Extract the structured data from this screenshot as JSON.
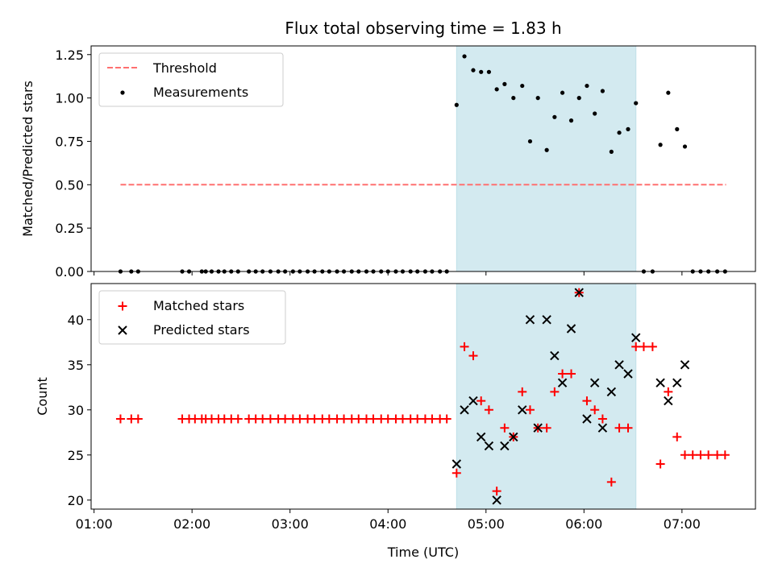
{
  "chart_data": [
    {
      "type": "scatter",
      "title": "Flux total observing time = 1.83 h",
      "xlabel": "",
      "ylabel": "Matched/Predicted stars",
      "ylim": [
        0,
        1.3
      ],
      "yticks": [
        "0.00",
        "0.25",
        "0.50",
        "0.75",
        "1.00",
        "1.25"
      ],
      "x_unit": "hours UTC",
      "xlim": [
        0.97,
        7.75
      ],
      "shaded_interval": [
        4.7,
        6.53
      ],
      "shade_color": "#d3eaf0",
      "legend": {
        "location": "upper left",
        "entries": [
          "Threshold",
          "Measurements"
        ]
      },
      "series": [
        {
          "name": "Threshold",
          "kind": "dashed-line",
          "color": "#ff7070",
          "x": [
            1.27,
            7.45
          ],
          "y": [
            0.5,
            0.5
          ]
        },
        {
          "name": "Measurements",
          "kind": "dot",
          "color": "#000000",
          "x": [
            1.27,
            1.38,
            1.45,
            1.9,
            1.97,
            2.1,
            2.14,
            2.2,
            2.27,
            2.33,
            2.4,
            2.47,
            2.58,
            2.65,
            2.72,
            2.8,
            2.88,
            2.95,
            3.03,
            3.1,
            3.18,
            3.25,
            3.33,
            3.4,
            3.48,
            3.55,
            3.63,
            3.7,
            3.78,
            3.85,
            3.93,
            4.0,
            4.08,
            4.15,
            4.23,
            4.3,
            4.38,
            4.45,
            4.53,
            4.6,
            4.7,
            4.78,
            4.87,
            4.95,
            5.03,
            5.11,
            5.19,
            5.28,
            5.37,
            5.45,
            5.53,
            5.62,
            5.7,
            5.78,
            5.87,
            5.95,
            6.03,
            6.11,
            6.19,
            6.28,
            6.36,
            6.45,
            6.53,
            6.61,
            6.7,
            6.78,
            6.86,
            6.95,
            7.03,
            7.11,
            7.19,
            7.27,
            7.36,
            7.44
          ],
          "y": [
            0,
            0,
            0,
            0,
            0,
            0,
            0,
            0,
            0,
            0,
            0,
            0,
            0,
            0,
            0,
            0,
            0,
            0,
            0,
            0,
            0,
            0,
            0,
            0,
            0,
            0,
            0,
            0,
            0,
            0,
            0,
            0,
            0,
            0,
            0,
            0,
            0,
            0,
            0,
            0,
            0.96,
            1.24,
            1.16,
            1.15,
            1.15,
            1.05,
            1.08,
            1.0,
            1.07,
            0.75,
            1.0,
            0.7,
            0.89,
            1.03,
            0.87,
            1.0,
            1.07,
            0.91,
            1.04,
            0.69,
            0.8,
            0.82,
            0.97,
            0,
            0,
            0.73,
            1.03,
            0.82,
            0.72,
            0,
            0,
            0,
            0,
            0
          ]
        }
      ]
    },
    {
      "type": "scatter",
      "title": "",
      "xlabel": "Time (UTC)",
      "ylabel": "Count",
      "ylim": [
        19,
        44
      ],
      "yticks": [
        "20",
        "25",
        "30",
        "35",
        "40"
      ],
      "xticks": [
        "01:00",
        "02:00",
        "03:00",
        "04:00",
        "05:00",
        "06:00",
        "07:00"
      ],
      "x_unit": "hours UTC",
      "xlim": [
        0.97,
        7.75
      ],
      "shaded_interval": [
        4.7,
        6.53
      ],
      "shade_color": "#d3eaf0",
      "legend": {
        "location": "upper left",
        "entries": [
          "Matched stars",
          "Predicted stars"
        ]
      },
      "series": [
        {
          "name": "Matched stars",
          "kind": "plus",
          "color": "#ff0000",
          "x": [
            1.27,
            1.38,
            1.45,
            1.9,
            1.97,
            2.03,
            2.1,
            2.14,
            2.2,
            2.27,
            2.33,
            2.4,
            2.47,
            2.58,
            2.65,
            2.72,
            2.8,
            2.88,
            2.95,
            3.03,
            3.1,
            3.18,
            3.25,
            3.33,
            3.4,
            3.48,
            3.55,
            3.63,
            3.7,
            3.78,
            3.85,
            3.93,
            4.0,
            4.08,
            4.15,
            4.23,
            4.3,
            4.38,
            4.45,
            4.53,
            4.6,
            4.7,
            4.78,
            4.87,
            4.95,
            5.03,
            5.11,
            5.19,
            5.28,
            5.37,
            5.45,
            5.53,
            5.62,
            5.7,
            5.78,
            5.87,
            5.95,
            6.03,
            6.11,
            6.19,
            6.28,
            6.36,
            6.45,
            6.53,
            6.61,
            6.7,
            6.78,
            6.86,
            6.95,
            7.03,
            7.11,
            7.19,
            7.27,
            7.36,
            7.44
          ],
          "y": [
            29,
            29,
            29,
            29,
            29,
            29,
            29,
            29,
            29,
            29,
            29,
            29,
            29,
            29,
            29,
            29,
            29,
            29,
            29,
            29,
            29,
            29,
            29,
            29,
            29,
            29,
            29,
            29,
            29,
            29,
            29,
            29,
            29,
            29,
            29,
            29,
            29,
            29,
            29,
            29,
            29,
            23,
            37,
            36,
            31,
            30,
            21,
            28,
            27,
            32,
            30,
            28,
            28,
            32,
            34,
            34,
            43,
            31,
            30,
            29,
            22,
            28,
            28,
            37,
            37,
            37,
            24,
            32,
            27,
            25,
            25,
            25,
            25,
            25,
            25
          ]
        },
        {
          "name": "Predicted stars",
          "kind": "cross",
          "color": "#000000",
          "x": [
            4.7,
            4.78,
            4.87,
            4.95,
            5.03,
            5.11,
            5.19,
            5.28,
            5.37,
            5.45,
            5.53,
            5.62,
            5.7,
            5.78,
            5.87,
            5.95,
            6.03,
            6.11,
            6.19,
            6.28,
            6.36,
            6.45,
            6.53,
            6.78,
            6.86,
            6.95,
            7.03
          ],
          "y": [
            24,
            30,
            31,
            27,
            26,
            20,
            26,
            27,
            30,
            40,
            28,
            40,
            36,
            33,
            39,
            43,
            29,
            33,
            28,
            32,
            35,
            34,
            38,
            33,
            31,
            33,
            35
          ]
        }
      ]
    }
  ]
}
